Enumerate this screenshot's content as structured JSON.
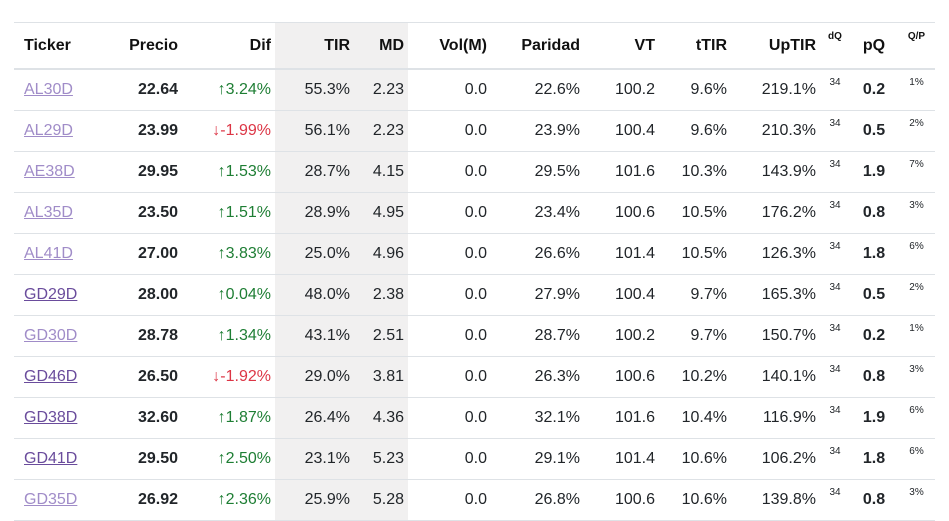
{
  "columns": [
    "Ticker",
    "Precio",
    "Dif",
    "TIR",
    "MD",
    "Vol(M)",
    "Paridad",
    "VT",
    "tTIR",
    "UpTIR",
    "dQ",
    "pQ",
    "Q/P"
  ],
  "rows": [
    {
      "ticker": "AL30D",
      "precio": "22.64",
      "dir": "up",
      "dif": "↑3.24%",
      "tir": "55.3%",
      "md": "2.23",
      "vol": "0.0",
      "paridad": "22.6%",
      "vt": "100.2",
      "ttir": "9.6%",
      "uptir": "219.1%",
      "dq": "34",
      "pq": "0.2",
      "qp": "1%",
      "visited": false
    },
    {
      "ticker": "AL29D",
      "precio": "23.99",
      "dir": "down",
      "dif": "↓-1.99%",
      "tir": "56.1%",
      "md": "2.23",
      "vol": "0.0",
      "paridad": "23.9%",
      "vt": "100.4",
      "ttir": "9.6%",
      "uptir": "210.3%",
      "dq": "34",
      "pq": "0.5",
      "qp": "2%",
      "visited": false
    },
    {
      "ticker": "AE38D",
      "precio": "29.95",
      "dir": "up",
      "dif": "↑1.53%",
      "tir": "28.7%",
      "md": "4.15",
      "vol": "0.0",
      "paridad": "29.5%",
      "vt": "101.6",
      "ttir": "10.3%",
      "uptir": "143.9%",
      "dq": "34",
      "pq": "1.9",
      "qp": "7%",
      "visited": false
    },
    {
      "ticker": "AL35D",
      "precio": "23.50",
      "dir": "up",
      "dif": "↑1.51%",
      "tir": "28.9%",
      "md": "4.95",
      "vol": "0.0",
      "paridad": "23.4%",
      "vt": "100.6",
      "ttir": "10.5%",
      "uptir": "176.2%",
      "dq": "34",
      "pq": "0.8",
      "qp": "3%",
      "visited": false
    },
    {
      "ticker": "AL41D",
      "precio": "27.00",
      "dir": "up",
      "dif": "↑3.83%",
      "tir": "25.0%",
      "md": "4.96",
      "vol": "0.0",
      "paridad": "26.6%",
      "vt": "101.4",
      "ttir": "10.5%",
      "uptir": "126.3%",
      "dq": "34",
      "pq": "1.8",
      "qp": "6%",
      "visited": false
    },
    {
      "ticker": "GD29D",
      "precio": "28.00",
      "dir": "up",
      "dif": "↑0.04%",
      "tir": "48.0%",
      "md": "2.38",
      "vol": "0.0",
      "paridad": "27.9%",
      "vt": "100.4",
      "ttir": "9.7%",
      "uptir": "165.3%",
      "dq": "34",
      "pq": "0.5",
      "qp": "2%",
      "visited": true
    },
    {
      "ticker": "GD30D",
      "precio": "28.78",
      "dir": "up",
      "dif": "↑1.34%",
      "tir": "43.1%",
      "md": "2.51",
      "vol": "0.0",
      "paridad": "28.7%",
      "vt": "100.2",
      "ttir": "9.7%",
      "uptir": "150.7%",
      "dq": "34",
      "pq": "0.2",
      "qp": "1%",
      "visited": false
    },
    {
      "ticker": "GD46D",
      "precio": "26.50",
      "dir": "down",
      "dif": "↓-1.92%",
      "tir": "29.0%",
      "md": "3.81",
      "vol": "0.0",
      "paridad": "26.3%",
      "vt": "100.6",
      "ttir": "10.2%",
      "uptir": "140.1%",
      "dq": "34",
      "pq": "0.8",
      "qp": "3%",
      "visited": true
    },
    {
      "ticker": "GD38D",
      "precio": "32.60",
      "dir": "up",
      "dif": "↑1.87%",
      "tir": "26.4%",
      "md": "4.36",
      "vol": "0.0",
      "paridad": "32.1%",
      "vt": "101.6",
      "ttir": "10.4%",
      "uptir": "116.9%",
      "dq": "34",
      "pq": "1.9",
      "qp": "6%",
      "visited": true
    },
    {
      "ticker": "GD41D",
      "precio": "29.50",
      "dir": "up",
      "dif": "↑2.50%",
      "tir": "23.1%",
      "md": "5.23",
      "vol": "0.0",
      "paridad": "29.1%",
      "vt": "101.4",
      "ttir": "10.6%",
      "uptir": "106.2%",
      "dq": "34",
      "pq": "1.8",
      "qp": "6%",
      "visited": true
    },
    {
      "ticker": "GD35D",
      "precio": "26.92",
      "dir": "up",
      "dif": "↑2.36%",
      "tir": "25.9%",
      "md": "5.28",
      "vol": "0.0",
      "paridad": "26.8%",
      "vt": "100.6",
      "ttir": "10.6%",
      "uptir": "139.8%",
      "dq": "34",
      "pq": "0.8",
      "qp": "3%",
      "visited": false
    }
  ],
  "colors": {
    "up": "#1e7e34",
    "down": "#dc3545",
    "link": "#a08cc8",
    "link_visited": "#6a4c9c",
    "shade": "#f1f0f0"
  }
}
